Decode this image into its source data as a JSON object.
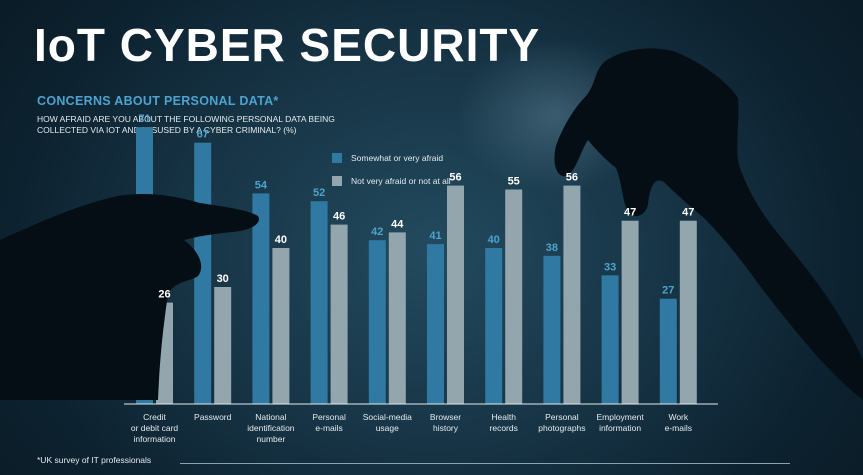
{
  "header": {
    "title": "IoT CYBER SECURITY",
    "subtitle": "CONCERNS ABOUT PERSONAL DATA*",
    "question": "HOW AFRAID ARE YOU ABOUT THE FOLLOWING PERSONAL DATA BEING COLLECTED VIA IoT AND MISUSED BY A CYBER CRIMINAL? (%)"
  },
  "footnote": "*UK survey of IT professionals",
  "colors": {
    "series_afraid": "#2f79a3",
    "series_not_afraid": "#93a5ad",
    "label": "#ffffff"
  },
  "chart_data": {
    "type": "bar",
    "title": "CONCERNS ABOUT PERSONAL DATA*",
    "ylim": [
      0,
      80
    ],
    "grid": false,
    "legend_position": "top",
    "categories": [
      [
        "Credit",
        "or debit card",
        "information"
      ],
      [
        "Password"
      ],
      [
        "National",
        "identification",
        "number"
      ],
      [
        "Personal",
        "e-mails"
      ],
      [
        "Social-media",
        "usage"
      ],
      [
        "Browser",
        "history"
      ],
      [
        "Health",
        "records"
      ],
      [
        "Personal",
        "photographs"
      ],
      [
        "Employment",
        "information"
      ],
      [
        "Work",
        "e-mails"
      ]
    ],
    "series": [
      {
        "name": "Somewhat or very afraid",
        "values": [
          71,
          67,
          54,
          52,
          42,
          41,
          40,
          38,
          33,
          27
        ]
      },
      {
        "name": "Not very afraid or not at all",
        "values": [
          26,
          30,
          40,
          46,
          44,
          56,
          55,
          56,
          47,
          47
        ]
      }
    ]
  }
}
